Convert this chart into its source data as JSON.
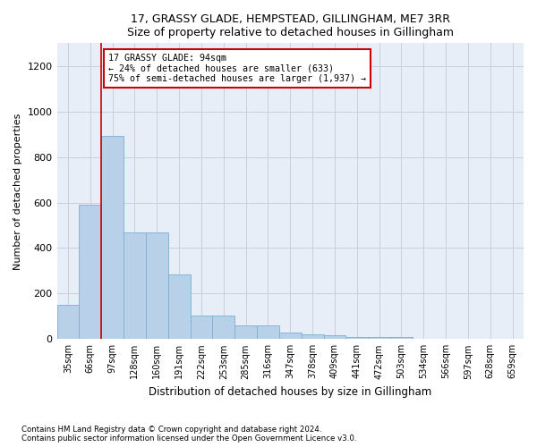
{
  "title": "17, GRASSY GLADE, HEMPSTEAD, GILLINGHAM, ME7 3RR",
  "subtitle": "Size of property relative to detached houses in Gillingham",
  "xlabel": "Distribution of detached houses by size in Gillingham",
  "ylabel": "Number of detached properties",
  "bar_color": "#b8d0e8",
  "bar_edge_color": "#7aafd4",
  "background_color": "#e8eef8",
  "grid_color": "#c8d0e0",
  "annotation_box_color": "#cc0000",
  "vline_color": "#cc0000",
  "vline_position": 1.5,
  "annotation_text_line1": "17 GRASSY GLADE: 94sqm",
  "annotation_text_line2": "← 24% of detached houses are smaller (633)",
  "annotation_text_line3": "75% of semi-detached houses are larger (1,937) →",
  "footer_line1": "Contains HM Land Registry data © Crown copyright and database right 2024.",
  "footer_line2": "Contains public sector information licensed under the Open Government Licence v3.0.",
  "categories": [
    "35sqm",
    "66sqm",
    "97sqm",
    "128sqm",
    "160sqm",
    "191sqm",
    "222sqm",
    "253sqm",
    "285sqm",
    "316sqm",
    "347sqm",
    "378sqm",
    "409sqm",
    "441sqm",
    "472sqm",
    "503sqm",
    "534sqm",
    "566sqm",
    "597sqm",
    "628sqm",
    "659sqm"
  ],
  "values": [
    152,
    590,
    893,
    470,
    468,
    285,
    105,
    103,
    62,
    62,
    30,
    20,
    15,
    10,
    10,
    8,
    0,
    0,
    0,
    0,
    0
  ],
  "ylim": [
    0,
    1300
  ],
  "yticks": [
    0,
    200,
    400,
    600,
    800,
    1000,
    1200
  ]
}
